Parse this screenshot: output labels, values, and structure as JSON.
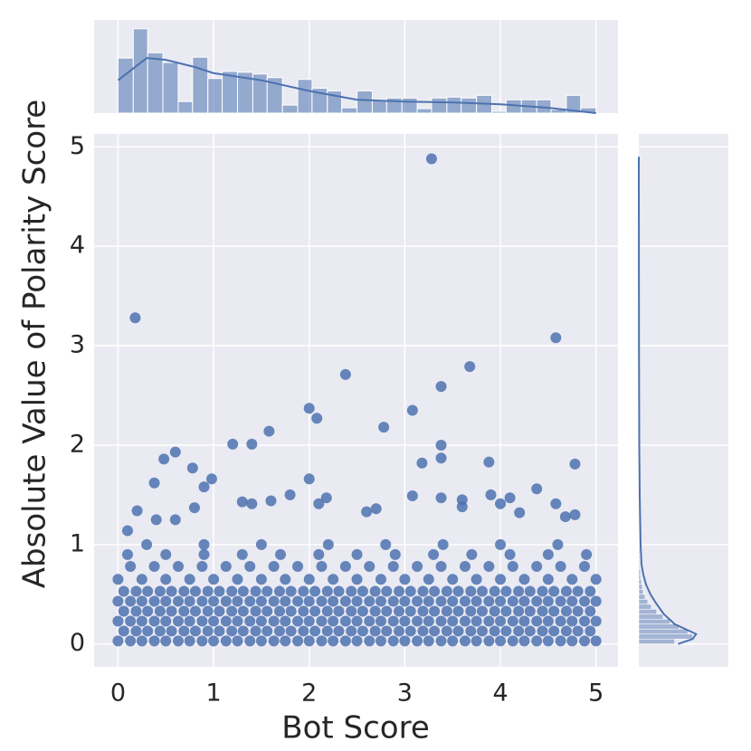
{
  "chart_data": [
    {
      "type": "scatter",
      "xlabel": "Bot Score",
      "ylabel": "Absolute Value of Polarity Score",
      "color": "#4c72b0",
      "grid": true,
      "xlim": [
        -0.25,
        5.23
      ],
      "ylim": [
        -0.23,
        5.13
      ],
      "xticks": [
        0,
        1,
        2,
        3,
        4,
        5
      ],
      "yticks": [
        0,
        1,
        2,
        3,
        4,
        5
      ],
      "x": [
        0,
        0.13,
        0.25,
        0.38,
        0.5,
        0.63,
        0.75,
        0.88,
        1,
        1.13,
        1.25,
        1.38,
        1.5,
        1.63,
        1.75,
        1.88,
        2,
        2.13,
        2.25,
        2.38,
        2.5,
        2.63,
        2.75,
        2.88,
        3,
        3.13,
        3.25,
        3.38,
        3.5,
        3.63,
        3.75,
        3.88,
        4,
        4.13,
        4.25,
        4.38,
        4.5,
        4.63,
        4.75,
        4.88,
        5,
        0.06,
        0.19,
        0.31,
        0.44,
        0.56,
        0.69,
        0.81,
        0.94,
        1.06,
        1.19,
        1.31,
        1.44,
        1.56,
        1.69,
        1.81,
        1.94,
        2.06,
        2.19,
        2.31,
        2.44,
        2.56,
        2.69,
        2.81,
        2.94,
        3.06,
        3.19,
        3.31,
        3.44,
        3.56,
        3.69,
        3.81,
        3.94,
        4.06,
        4.19,
        4.31,
        4.44,
        4.56,
        4.69,
        4.81,
        4.94,
        0,
        0.13,
        0.25,
        0.38,
        0.5,
        0.63,
        0.75,
        0.88,
        1,
        1.13,
        1.25,
        1.38,
        1.5,
        1.63,
        1.75,
        1.88,
        2,
        2.13,
        2.25,
        2.38,
        2.5,
        2.63,
        2.75,
        2.88,
        3,
        3.13,
        3.25,
        3.38,
        3.5,
        3.63,
        3.75,
        3.88,
        4,
        4.13,
        4.25,
        4.38,
        4.5,
        4.63,
        4.75,
        4.88,
        5,
        0.06,
        0.19,
        0.31,
        0.44,
        0.56,
        0.69,
        0.81,
        0.94,
        1.06,
        1.19,
        1.31,
        1.44,
        1.56,
        1.69,
        1.81,
        1.94,
        2.06,
        2.19,
        2.31,
        2.44,
        2.56,
        2.69,
        2.81,
        2.94,
        3.06,
        3.19,
        3.31,
        3.44,
        3.56,
        3.69,
        3.81,
        3.94,
        4.06,
        4.19,
        4.31,
        4.44,
        4.56,
        4.69,
        4.81,
        4.94,
        0,
        0.13,
        0.25,
        0.38,
        0.5,
        0.63,
        0.75,
        0.88,
        1,
        1.13,
        1.25,
        1.38,
        1.5,
        1.63,
        1.75,
        1.88,
        2,
        2.13,
        2.25,
        2.38,
        2.5,
        2.63,
        2.75,
        2.88,
        3,
        3.13,
        3.25,
        3.38,
        3.5,
        3.63,
        3.75,
        3.88,
        4,
        4.13,
        4.25,
        4.38,
        4.5,
        4.63,
        4.75,
        4.88,
        5,
        0.06,
        0.19,
        0.31,
        0.44,
        0.56,
        0.69,
        0.81,
        0.94,
        1.06,
        1.19,
        1.31,
        1.44,
        1.56,
        1.69,
        1.81,
        1.94,
        2.06,
        2.19,
        2.31,
        2.44,
        2.56,
        2.69,
        2.81,
        2.94,
        3.06,
        3.19,
        3.31,
        3.44,
        3.56,
        3.69,
        3.81,
        3.94,
        4.06,
        4.19,
        4.31,
        4.44,
        4.56,
        4.69,
        4.81,
        4.94,
        0,
        0.25,
        0.5,
        0.75,
        1,
        1.25,
        1.5,
        1.75,
        2,
        2.25,
        2.5,
        2.75,
        3,
        3.25,
        3.5,
        3.75,
        4,
        4.25,
        4.5,
        4.75,
        5,
        0.13,
        0.38,
        0.63,
        0.88,
        1.13,
        1.38,
        1.63,
        1.88,
        2.13,
        2.38,
        2.63,
        2.88,
        3.13,
        3.38,
        3.63,
        3.88,
        4.13,
        4.38,
        4.63,
        4.88,
        0.1,
        0.5,
        0.9,
        1.3,
        1.7,
        2.1,
        2.5,
        2.9,
        3.3,
        3.7,
        4.1,
        4.5,
        4.9,
        0.3,
        0.9,
        1.5,
        2.2,
        2.8,
        3.4,
        4,
        4.6,
        0.18,
        3.28,
        4.58,
        2.38,
        3.68,
        3.38,
        2,
        2.08,
        1.58,
        2.78,
        3.08,
        1.2,
        1.4,
        3.38,
        0.48,
        0.6,
        0.38,
        0.78,
        0.9,
        0.98,
        2,
        3.38,
        3.18,
        3.88,
        4.78,
        1.8,
        2.18,
        3.08,
        3.9,
        4.38,
        4.1,
        0.2,
        0.1,
        0.4,
        0.6,
        0.8,
        1.3,
        1.4,
        1.6,
        2.1,
        2.6,
        2.7,
        3.38,
        3.6,
        3.6,
        4,
        4.2,
        4.58,
        4.68,
        4.78
      ],
      "y": [
        0.03,
        0.03,
        0.03,
        0.03,
        0.03,
        0.03,
        0.03,
        0.03,
        0.03,
        0.03,
        0.03,
        0.03,
        0.03,
        0.03,
        0.03,
        0.03,
        0.03,
        0.03,
        0.03,
        0.03,
        0.03,
        0.03,
        0.03,
        0.03,
        0.03,
        0.03,
        0.03,
        0.03,
        0.03,
        0.03,
        0.03,
        0.03,
        0.03,
        0.03,
        0.03,
        0.03,
        0.03,
        0.03,
        0.03,
        0.03,
        0.03,
        0.13,
        0.13,
        0.13,
        0.13,
        0.13,
        0.13,
        0.13,
        0.13,
        0.13,
        0.13,
        0.13,
        0.13,
        0.13,
        0.13,
        0.13,
        0.13,
        0.13,
        0.13,
        0.13,
        0.13,
        0.13,
        0.13,
        0.13,
        0.13,
        0.13,
        0.13,
        0.13,
        0.13,
        0.13,
        0.13,
        0.13,
        0.13,
        0.13,
        0.13,
        0.13,
        0.13,
        0.13,
        0.13,
        0.13,
        0.13,
        0.23,
        0.23,
        0.23,
        0.23,
        0.23,
        0.23,
        0.23,
        0.23,
        0.23,
        0.23,
        0.23,
        0.23,
        0.23,
        0.23,
        0.23,
        0.23,
        0.23,
        0.23,
        0.23,
        0.23,
        0.23,
        0.23,
        0.23,
        0.23,
        0.23,
        0.23,
        0.23,
        0.23,
        0.23,
        0.23,
        0.23,
        0.23,
        0.23,
        0.23,
        0.23,
        0.23,
        0.23,
        0.23,
        0.23,
        0.23,
        0.23,
        0.33,
        0.33,
        0.33,
        0.33,
        0.33,
        0.33,
        0.33,
        0.33,
        0.33,
        0.33,
        0.33,
        0.33,
        0.33,
        0.33,
        0.33,
        0.33,
        0.33,
        0.33,
        0.33,
        0.33,
        0.33,
        0.33,
        0.33,
        0.33,
        0.33,
        0.33,
        0.33,
        0.33,
        0.33,
        0.33,
        0.33,
        0.33,
        0.33,
        0.33,
        0.33,
        0.33,
        0.33,
        0.33,
        0.33,
        0.33,
        0.43,
        0.43,
        0.43,
        0.43,
        0.43,
        0.43,
        0.43,
        0.43,
        0.43,
        0.43,
        0.43,
        0.43,
        0.43,
        0.43,
        0.43,
        0.43,
        0.43,
        0.43,
        0.43,
        0.43,
        0.43,
        0.43,
        0.43,
        0.43,
        0.43,
        0.43,
        0.43,
        0.43,
        0.43,
        0.43,
        0.43,
        0.43,
        0.43,
        0.43,
        0.43,
        0.43,
        0.43,
        0.43,
        0.43,
        0.43,
        0.43,
        0.53,
        0.53,
        0.53,
        0.53,
        0.53,
        0.53,
        0.53,
        0.53,
        0.53,
        0.53,
        0.53,
        0.53,
        0.53,
        0.53,
        0.53,
        0.53,
        0.53,
        0.53,
        0.53,
        0.53,
        0.53,
        0.53,
        0.53,
        0.53,
        0.53,
        0.53,
        0.53,
        0.53,
        0.53,
        0.53,
        0.53,
        0.53,
        0.53,
        0.53,
        0.53,
        0.53,
        0.53,
        0.53,
        0.53,
        0.53,
        0.65,
        0.65,
        0.65,
        0.65,
        0.65,
        0.65,
        0.65,
        0.65,
        0.65,
        0.65,
        0.65,
        0.65,
        0.65,
        0.65,
        0.65,
        0.65,
        0.65,
        0.65,
        0.65,
        0.65,
        0.65,
        0.78,
        0.78,
        0.78,
        0.78,
        0.78,
        0.78,
        0.78,
        0.78,
        0.78,
        0.78,
        0.78,
        0.78,
        0.78,
        0.78,
        0.78,
        0.78,
        0.78,
        0.78,
        0.78,
        0.78,
        0.9,
        0.9,
        0.9,
        0.9,
        0.9,
        0.9,
        0.9,
        0.9,
        0.9,
        0.9,
        0.9,
        0.9,
        0.9,
        1,
        1,
        1,
        1,
        1,
        1,
        1,
        1,
        3.28,
        4.88,
        3.08,
        2.71,
        2.79,
        2.59,
        2.37,
        2.27,
        2.14,
        2.18,
        2.35,
        2.01,
        2.01,
        2,
        1.86,
        1.93,
        1.62,
        1.77,
        1.58,
        1.66,
        1.66,
        1.87,
        1.82,
        1.83,
        1.81,
        1.5,
        1.47,
        1.49,
        1.5,
        1.56,
        1.47,
        1.34,
        1.14,
        1.25,
        1.25,
        1.37,
        1.43,
        1.41,
        1.44,
        1.41,
        1.33,
        1.36,
        1.47,
        1.45,
        1.38,
        1.41,
        1.32,
        1.41,
        1.28,
        1.3
      ]
    },
    {
      "type": "histogram",
      "color": "#4c72b0",
      "xlim": [
        -0.25,
        5.23
      ],
      "ylim": [
        0,
        105
      ],
      "bins": [
        0,
        0.16,
        0.31,
        0.47,
        0.63,
        0.78,
        0.94,
        1.09,
        1.25,
        1.41,
        1.56,
        1.72,
        1.88,
        2.03,
        2.19,
        2.34,
        2.5,
        2.66,
        2.81,
        2.97,
        3.13,
        3.28,
        3.44,
        3.59,
        3.75,
        3.91,
        4.06,
        4.22,
        4.38,
        4.53,
        4.69,
        4.84,
        5
      ],
      "values": [
        62,
        95,
        68,
        57,
        13,
        63,
        39,
        47,
        46,
        44,
        40,
        9,
        38,
        28,
        25,
        6,
        25,
        15,
        17,
        17,
        5,
        17,
        18,
        17,
        20,
        2,
        15,
        15,
        15,
        4,
        20,
        6
      ],
      "kde": {
        "x": [
          0,
          0.3,
          0.5,
          0.8,
          1,
          1.5,
          2,
          2.5,
          3,
          3.5,
          4,
          4.5,
          5
        ],
        "values": [
          37,
          62,
          60,
          52,
          45,
          37,
          25,
          15,
          13,
          12,
          10,
          6,
          0
        ]
      }
    },
    {
      "type": "histogram-horizontal",
      "color": "#4c72b0",
      "xlim": [
        0,
        100
      ],
      "ylim": [
        -0.23,
        5.13
      ],
      "bins": [
        0,
        0.05,
        0.1,
        0.15,
        0.2,
        0.25,
        0.3,
        0.35,
        0.4,
        0.45,
        0.5,
        0.55,
        0.6,
        0.65,
        0.7,
        0.75,
        0.8,
        0.85,
        0.9,
        0.95,
        1
      ],
      "values": [
        40,
        60,
        55,
        45,
        35,
        27,
        20,
        14,
        10,
        7,
        5,
        4,
        3,
        2,
        2,
        1,
        1,
        1,
        1,
        1
      ],
      "kde": {
        "y": [
          0,
          0.05,
          0.1,
          0.15,
          0.2,
          0.3,
          0.4,
          0.5,
          0.6,
          0.7,
          0.8,
          1,
          1.5,
          2,
          3,
          4,
          4.9
        ],
        "values": [
          44,
          60,
          64,
          52,
          40,
          28,
          20,
          13,
          8,
          5,
          3,
          2,
          1,
          0.5,
          0.2,
          0.1,
          0
        ]
      }
    }
  ]
}
